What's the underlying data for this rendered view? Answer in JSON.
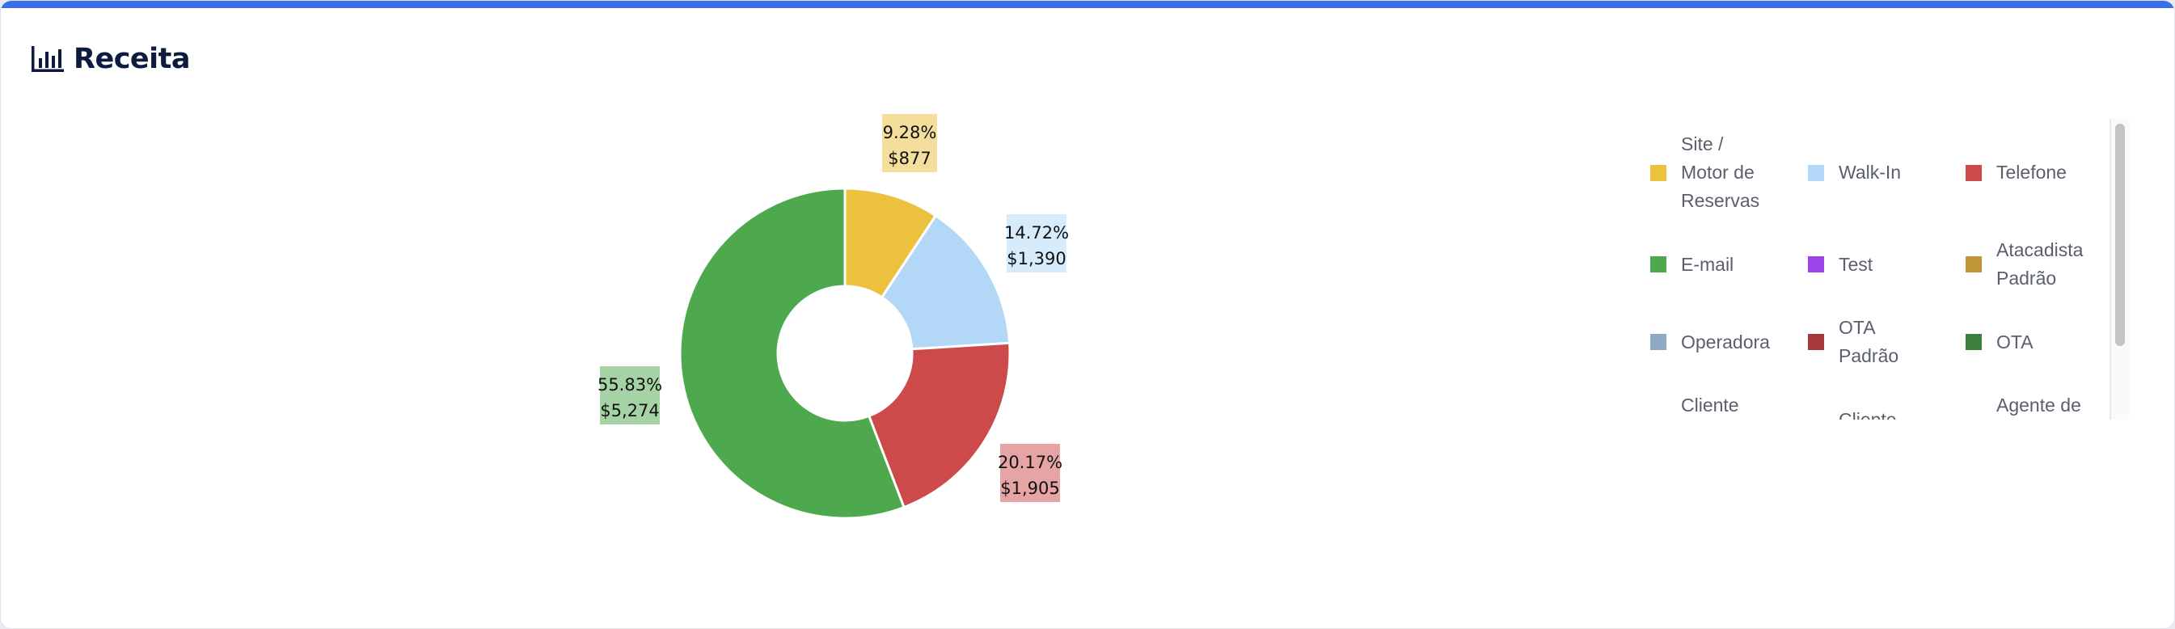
{
  "header": {
    "title": "Receita",
    "icon": "bar-chart-icon"
  },
  "chart_data": {
    "type": "pie",
    "donut": true,
    "slices": [
      {
        "name": "Site / Motor de Reservas",
        "percent": 9.28,
        "percent_label": "9.28%",
        "value_label": "$877",
        "color": "#ECC13E",
        "label_bg": "#F4DE9C"
      },
      {
        "name": "Walk-In",
        "percent": 14.72,
        "percent_label": "14.72%",
        "value_label": "$1,390",
        "color": "#B3D8F7",
        "label_bg": "#D8EBFB"
      },
      {
        "name": "Telefone",
        "percent": 20.17,
        "percent_label": "20.17%",
        "value_label": "$1,905",
        "color": "#CD4A4A",
        "label_bg": "#E6A4A4"
      },
      {
        "name": "E-mail",
        "percent": 55.83,
        "percent_label": "55.83%",
        "value_label": "$5,274",
        "color": "#4EA84E",
        "label_bg": "#A6D3A6"
      }
    ]
  },
  "legend": {
    "items": [
      {
        "label": "Site / Motor de Reservas",
        "color": "#ECC13E"
      },
      {
        "label": "Walk-In",
        "color": "#B3D8F7"
      },
      {
        "label": "Telefone",
        "color": "#CD4A4A"
      },
      {
        "label": "E-mail",
        "color": "#4EA84E"
      },
      {
        "label": "Test",
        "color": "#9B45E8"
      },
      {
        "label": "Atacadista Padrão",
        "color": "#BE9633"
      },
      {
        "label": "Operadora",
        "color": "#8FA9C2"
      },
      {
        "label": "OTA Padrão",
        "color": "#A63A3A"
      },
      {
        "label": "OTA",
        "color": "#3C803C"
      },
      {
        "label": "Cliente Corporativo Padrão",
        "color": "#7133C6"
      },
      {
        "label": "Cliente Corporativo",
        "color": "#F7DE48"
      },
      {
        "label": "Agente de Viagens Padrão",
        "color": "#D4FAFA"
      }
    ]
  }
}
